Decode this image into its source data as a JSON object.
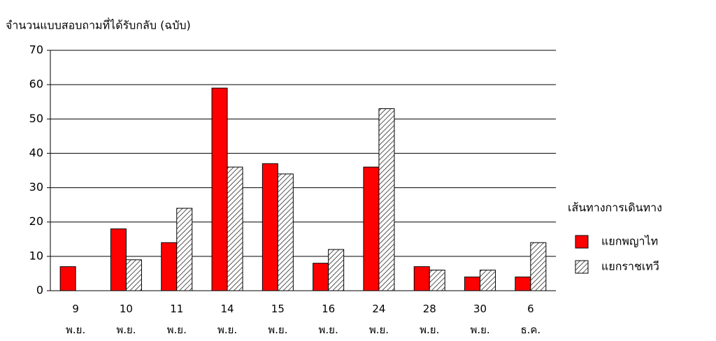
{
  "chart_data": {
    "type": "bar",
    "title": "จำนวนแบบสอบถามที่ได้รับกลับ (ฉบับ)",
    "categories": [
      "9 พ.ย.",
      "10 พ.ย.",
      "11 พ.ย.",
      "14 พ.ย.",
      "15 พ.ย.",
      "16 พ.ย.",
      "24 พ.ย.",
      "28 พ.ย.",
      "30 พ.ย.",
      "6 ธ.ค."
    ],
    "series": [
      {
        "name": "แยกพญาไท",
        "color": "#ff0000",
        "values": [
          7,
          18,
          14,
          59,
          37,
          8,
          36,
          7,
          4,
          4
        ]
      },
      {
        "name": "แยกราชเทวี",
        "color": "hatch",
        "values": [
          null,
          9,
          24,
          36,
          34,
          12,
          53,
          6,
          6,
          14
        ]
      }
    ],
    "legend_title": "เส้นทางการเดินทาง",
    "legend": "right",
    "ylim": [
      0,
      70
    ],
    "yticks": [
      0,
      10,
      20,
      30,
      40,
      50,
      60,
      70
    ],
    "grid": true
  }
}
